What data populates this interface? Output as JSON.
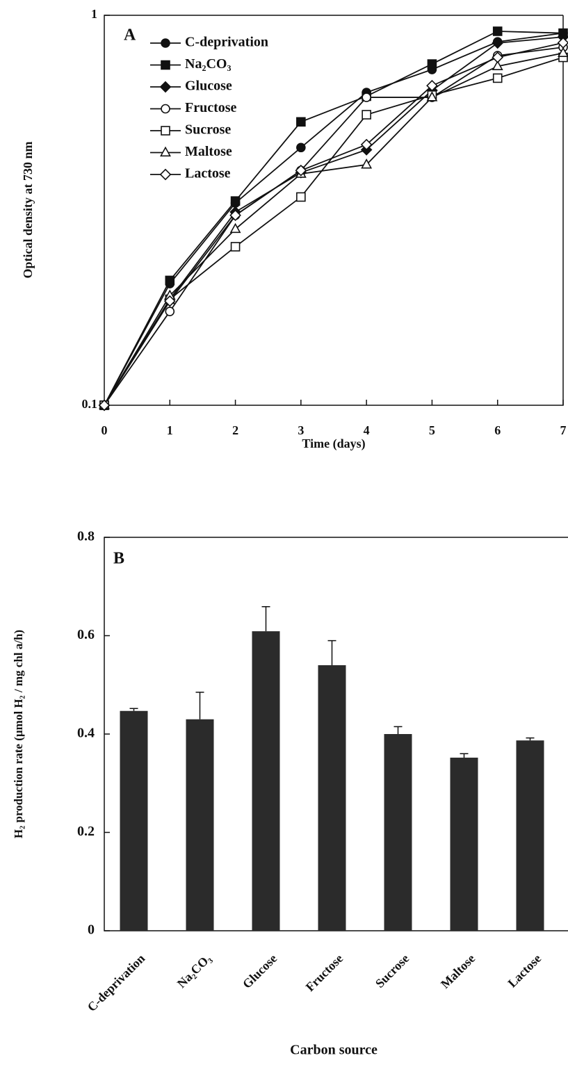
{
  "chart_data": [
    {
      "type": "line",
      "panel_label": "A",
      "x_label": "Time (days)",
      "y_label": "Optical density at 730 nm",
      "x": [
        0,
        1,
        2,
        3,
        4,
        5,
        6,
        7
      ],
      "xlim": [
        0,
        7
      ],
      "xticks": [
        0,
        1,
        2,
        3,
        4,
        5,
        6,
        7
      ],
      "yscale": "log",
      "ylim": [
        0.1,
        1
      ],
      "yticks": [
        0.1,
        1
      ],
      "legend": "top-left",
      "series": [
        {
          "name": "C-deprivation",
          "marker": "circle",
          "filled": true,
          "color": "#111111",
          "values": [
            0.1,
            0.205,
            0.33,
            0.458,
            0.634,
            0.726,
            0.855,
            0.9
          ]
        },
        {
          "name": "Na₂CO₃",
          "marker": "square",
          "filled": true,
          "color": "#111111",
          "values": [
            0.1,
            0.209,
            0.334,
            0.533,
            0.62,
            0.75,
            0.91,
            0.9
          ]
        },
        {
          "name": "Glucose",
          "marker": "diamond",
          "filled": true,
          "color": "#111111",
          "values": [
            0.1,
            0.187,
            0.313,
            0.395,
            0.452,
            0.642,
            0.849,
            0.88
          ]
        },
        {
          "name": "Fructose",
          "marker": "circle",
          "filled": false,
          "color": "#111111",
          "values": [
            0.1,
            0.174,
            0.307,
            0.4,
            0.616,
            0.616,
            0.788,
            0.828
          ]
        },
        {
          "name": "Sucrose",
          "marker": "square",
          "filled": false,
          "color": "#111111",
          "values": [
            0.1,
            0.187,
            0.255,
            0.342,
            0.556,
            0.624,
            0.69,
            0.78
          ]
        },
        {
          "name": "Maltose",
          "marker": "triangle",
          "filled": false,
          "color": "#111111",
          "values": [
            0.1,
            0.191,
            0.283,
            0.392,
            0.414,
            0.616,
            0.74,
            0.8
          ]
        },
        {
          "name": "Lactose",
          "marker": "diamond",
          "filled": false,
          "color": "#111111",
          "values": [
            0.1,
            0.185,
            0.307,
            0.4,
            0.466,
            0.66,
            0.78,
            0.85
          ]
        }
      ]
    },
    {
      "type": "bar",
      "panel_label": "B",
      "x_label": "Carbon source",
      "y_label": "H₂ production rate (µmol H₂ / mg chl a/h)",
      "categories": [
        "C-deprivation",
        "Na₂CO₃",
        "Glucose",
        "Fructose",
        "Sucrose",
        "Maltose",
        "Lactose"
      ],
      "values": [
        0.447,
        0.43,
        0.609,
        0.54,
        0.4,
        0.352,
        0.387
      ],
      "errors": [
        0.005,
        0.055,
        0.05,
        0.05,
        0.015,
        0.008,
        0.005
      ],
      "color": "#2b2b2b",
      "ylim": [
        0,
        0.8
      ],
      "yticks": [
        0,
        0.2,
        0.4,
        0.6,
        0.8
      ]
    }
  ]
}
